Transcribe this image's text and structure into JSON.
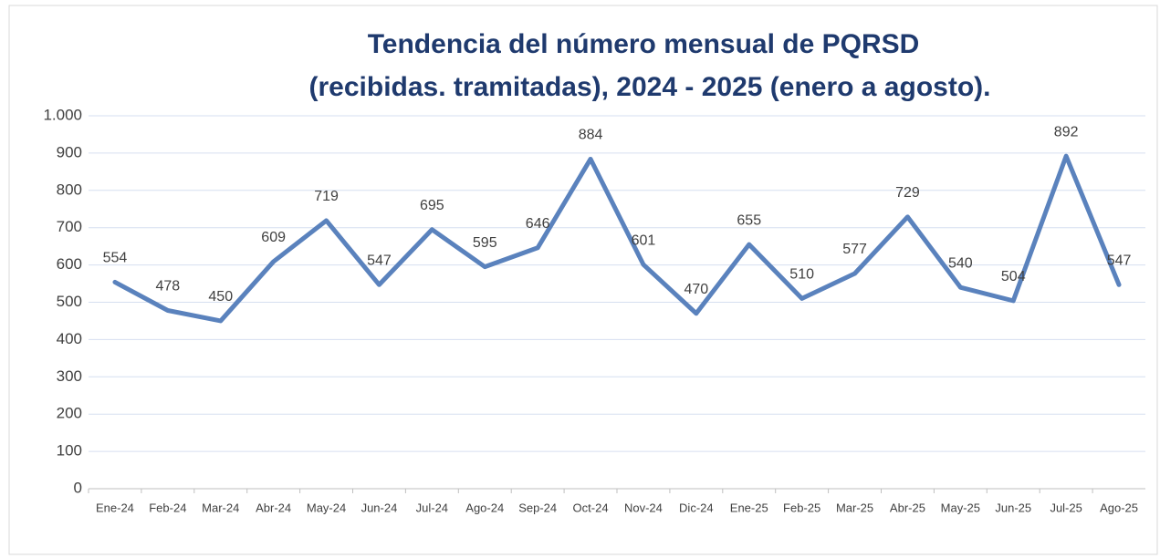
{
  "chart_data": {
    "type": "line",
    "title": [
      "Tendencia del número mensual de PQRSD",
      "(recibidas. tramitadas),  2024 - 2025 (enero a agosto)."
    ],
    "categories": [
      "Ene-24",
      "Feb-24",
      "Mar-24",
      "Abr-24",
      "May-24",
      "Jun-24",
      "Jul-24",
      "Ago-24",
      "Sep-24",
      "Oct-24",
      "Nov-24",
      "Dic-24",
      "Ene-25",
      "Feb-25",
      "Mar-25",
      "Abr-25",
      "May-25",
      "Jun-25",
      "Jul-25",
      "Ago-25"
    ],
    "values": [
      554,
      478,
      450,
      609,
      719,
      547,
      695,
      595,
      646,
      884,
      601,
      470,
      655,
      510,
      577,
      729,
      540,
      504,
      892,
      547
    ],
    "color": "#5a82bd",
    "ylim": [
      0,
      1000
    ],
    "yticks": [
      0,
      100,
      200,
      300,
      400,
      500,
      600,
      700,
      800,
      900,
      {
        "value": 1000,
        "label": "1.000"
      }
    ],
    "grid": true
  }
}
